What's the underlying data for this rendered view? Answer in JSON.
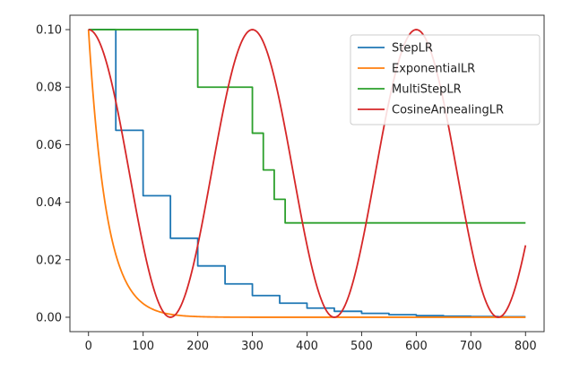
{
  "chart_data": {
    "type": "line",
    "x_range": [
      0,
      800
    ],
    "xlim": [
      -34,
      834
    ],
    "ylim": [
      -0.005,
      0.105
    ],
    "xticks": [
      0,
      100,
      200,
      300,
      400,
      500,
      600,
      700,
      800
    ],
    "xtick_labels": [
      "0",
      "100",
      "200",
      "300",
      "400",
      "500",
      "600",
      "700",
      "800"
    ],
    "yticks": [
      0.0,
      0.02,
      0.04,
      0.06,
      0.08,
      0.1
    ],
    "ytick_labels": [
      "0.00",
      "0.02",
      "0.04",
      "0.06",
      "0.08",
      "0.10"
    ],
    "grid": false,
    "legend_position": "top-right",
    "series": [
      {
        "name": "StepLR",
        "color": "#1f77b4",
        "kind": "step",
        "breaks": [
          0,
          50,
          100,
          150,
          200,
          250,
          300,
          350,
          400,
          450,
          500,
          550,
          600,
          650,
          700,
          750,
          800
        ],
        "values": [
          0.1,
          0.065,
          0.04225,
          0.02746,
          0.01785,
          0.0116,
          0.00754,
          0.0049,
          0.00319,
          0.00207,
          0.00135,
          0.00087,
          0.00057,
          0.00037,
          0.00024,
          0.00016,
          0.00016
        ]
      },
      {
        "name": "ExponentialLR",
        "color": "#ff7f0e",
        "kind": "exponential",
        "start": 0.1,
        "gamma": 0.97
      },
      {
        "name": "MultiStepLR",
        "color": "#2ca02c",
        "kind": "step",
        "breaks": [
          0,
          200,
          300,
          320,
          340,
          360,
          800
        ],
        "values": [
          0.1,
          0.08,
          0.064,
          0.0512,
          0.041,
          0.0328,
          0.0328
        ]
      },
      {
        "name": "CosineAnnealingLR",
        "color": "#d62728",
        "kind": "cosine",
        "max": 0.1,
        "min": 0.0,
        "half_period": 150
      }
    ]
  }
}
